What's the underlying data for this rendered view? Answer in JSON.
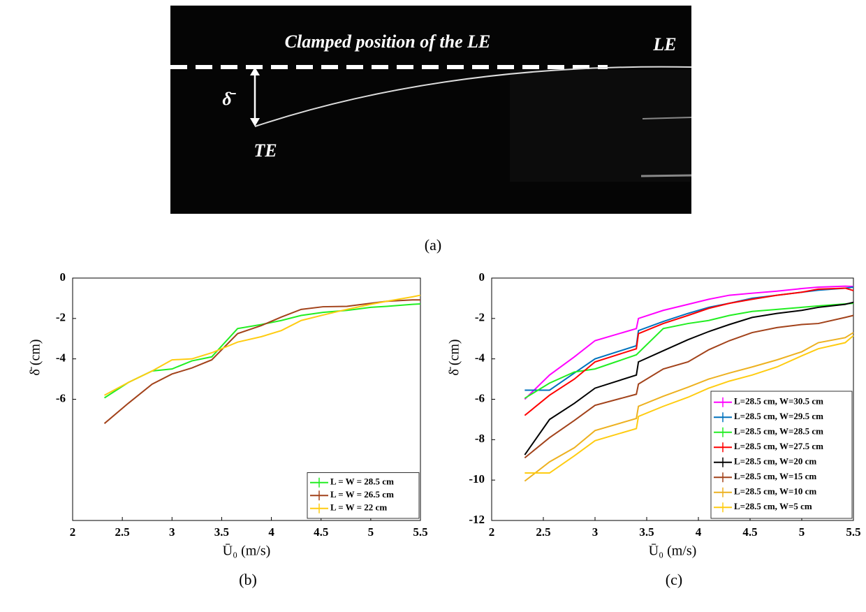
{
  "figure": {
    "image_labels": {
      "clamped": "Clamped position of the LE",
      "le": "LE",
      "delta": "δ̄",
      "te": "TE"
    },
    "panel_labels": [
      "(a)",
      "(b)",
      "(c)"
    ]
  },
  "chart_data": [
    {
      "type": "line",
      "x_label": "Ū₀ (m/s)",
      "y_label": "δ̄ (cm)",
      "xlim": [
        2,
        5.5
      ],
      "xticks": [
        2,
        2.5,
        3,
        3.5,
        4,
        4.5,
        5,
        5.5
      ],
      "ylim": [
        -12,
        0
      ],
      "yticks": [
        0,
        -2,
        -4,
        -6
      ],
      "legend": "lower right",
      "series": [
        {
          "name": "L = W = 28.5 cm",
          "color": "#22ee22",
          "x": [
            2.32,
            2.56,
            2.8,
            3.0,
            3.2,
            3.4,
            3.66,
            3.9,
            4.1,
            4.3,
            4.52,
            4.76,
            5.0,
            5.16,
            5.42,
            5.5
          ],
          "values": [
            -5.93,
            -5.17,
            -4.6,
            -4.5,
            -4.1,
            -3.9,
            -2.5,
            -2.3,
            -2.1,
            -1.85,
            -1.7,
            -1.6,
            -1.45,
            -1.4,
            -1.3,
            -1.28
          ]
        },
        {
          "name": "L = W = 26.5 cm",
          "color": "#a2421a",
          "x": [
            2.32,
            2.56,
            2.8,
            3.0,
            3.2,
            3.4,
            3.66,
            3.9,
            4.1,
            4.3,
            4.52,
            4.76,
            5.0,
            5.16,
            5.42,
            5.5
          ],
          "values": [
            -7.2,
            -6.2,
            -5.25,
            -4.75,
            -4.45,
            -4.05,
            -2.75,
            -2.35,
            -1.93,
            -1.55,
            -1.42,
            -1.4,
            -1.25,
            -1.15,
            -1.08,
            -1.08
          ]
        },
        {
          "name": "L = W = 22 cm",
          "color": "#ffcc11",
          "x": [
            2.32,
            2.56,
            2.8,
            3.0,
            3.2,
            3.4,
            3.66,
            3.9,
            4.1,
            4.3,
            4.52,
            4.76,
            5.0,
            5.16,
            5.42,
            5.5
          ],
          "values": [
            -5.8,
            -5.17,
            -4.6,
            -4.05,
            -4.0,
            -3.7,
            -3.17,
            -2.9,
            -2.6,
            -2.1,
            -1.83,
            -1.55,
            -1.3,
            -1.15,
            -0.93,
            -0.85
          ]
        }
      ]
    },
    {
      "type": "line",
      "x_label": "Ū₀ (m/s)",
      "y_label": "δ̄ (cm)",
      "xlim": [
        2,
        5.5
      ],
      "xticks": [
        2,
        2.5,
        3,
        3.5,
        4,
        4.5,
        5,
        5.5
      ],
      "ylim": [
        -12,
        0
      ],
      "yticks": [
        0,
        -2,
        -4,
        -6,
        -8,
        -10,
        -12
      ],
      "legend": "lower right",
      "series": [
        {
          "name": "L=28.5 cm, W=30.5 cm",
          "color": "#ff00ff",
          "x": [
            2.32,
            2.56,
            2.8,
            3.0,
            3.4,
            3.42,
            3.66,
            3.9,
            4.1,
            4.3,
            4.52,
            4.76,
            5.0,
            5.16,
            5.42,
            5.5
          ],
          "values": [
            -6.0,
            -4.8,
            -3.9,
            -3.1,
            -2.5,
            -2.0,
            -1.6,
            -1.3,
            -1.05,
            -0.85,
            -0.75,
            -0.65,
            -0.52,
            -0.45,
            -0.4,
            -0.42
          ]
        },
        {
          "name": "L=28.5 cm, W=29.5 cm",
          "color": "#0072bd",
          "x": [
            2.32,
            2.56,
            2.8,
            3.0,
            3.4,
            3.42,
            3.66,
            3.9,
            4.1,
            4.3,
            4.52,
            4.76,
            5.0,
            5.16,
            5.42,
            5.5
          ],
          "values": [
            -5.55,
            -5.55,
            -4.7,
            -4.0,
            -3.35,
            -2.6,
            -2.15,
            -1.75,
            -1.45,
            -1.25,
            -1.0,
            -0.85,
            -0.7,
            -0.6,
            -0.5,
            -0.45
          ]
        },
        {
          "name": "L=28.5 cm, W=28.5 cm",
          "color": "#22ee22",
          "x": [
            2.32,
            2.56,
            2.8,
            3.0,
            3.2,
            3.4,
            3.66,
            3.9,
            4.1,
            4.3,
            4.52,
            4.76,
            5.0,
            5.16,
            5.42,
            5.5
          ],
          "values": [
            -5.95,
            -5.2,
            -4.65,
            -4.5,
            -4.15,
            -3.8,
            -2.5,
            -2.25,
            -2.1,
            -1.85,
            -1.65,
            -1.55,
            -1.45,
            -1.38,
            -1.28,
            -1.25
          ]
        },
        {
          "name": "L=28.5 cm, W=27.5 cm",
          "color": "#ff0000",
          "x": [
            2.32,
            2.56,
            2.8,
            3.0,
            3.4,
            3.42,
            3.66,
            3.9,
            4.1,
            4.3,
            4.52,
            4.76,
            5.0,
            5.16,
            5.42,
            5.5
          ],
          "values": [
            -6.8,
            -5.8,
            -5.0,
            -4.15,
            -3.5,
            -2.75,
            -2.25,
            -1.85,
            -1.5,
            -1.25,
            -1.05,
            -0.85,
            -0.7,
            -0.55,
            -0.5,
            -0.62
          ]
        },
        {
          "name": "L=28.5 cm, W=20 cm",
          "color": "#000000",
          "x": [
            2.32,
            2.56,
            2.8,
            3.0,
            3.4,
            3.42,
            3.66,
            3.9,
            4.1,
            4.3,
            4.52,
            4.76,
            5.0,
            5.16,
            5.42,
            5.5
          ],
          "values": [
            -8.75,
            -7.0,
            -6.2,
            -5.45,
            -4.8,
            -4.15,
            -3.6,
            -3.05,
            -2.65,
            -2.3,
            -1.95,
            -1.75,
            -1.6,
            -1.45,
            -1.3,
            -1.2
          ]
        },
        {
          "name": "L=28.5 cm, W=15 cm",
          "color": "#a2421a",
          "x": [
            2.32,
            2.56,
            2.8,
            3.0,
            3.4,
            3.42,
            3.66,
            3.9,
            4.1,
            4.3,
            4.52,
            4.76,
            5.0,
            5.16,
            5.42,
            5.5
          ],
          "values": [
            -8.9,
            -7.9,
            -7.05,
            -6.3,
            -5.75,
            -5.25,
            -4.5,
            -4.15,
            -3.55,
            -3.1,
            -2.7,
            -2.45,
            -2.3,
            -2.25,
            -1.95,
            -1.85
          ]
        },
        {
          "name": "L=28.5 cm, W=10 cm",
          "color": "#edb120",
          "x": [
            2.32,
            2.56,
            2.8,
            3.0,
            3.4,
            3.42,
            3.66,
            3.9,
            4.1,
            4.3,
            4.52,
            4.76,
            5.0,
            5.16,
            5.42,
            5.5
          ],
          "values": [
            -10.05,
            -9.1,
            -8.4,
            -7.55,
            -6.95,
            -6.35,
            -5.85,
            -5.4,
            -5.0,
            -4.7,
            -4.4,
            -4.05,
            -3.65,
            -3.2,
            -2.95,
            -2.7
          ]
        },
        {
          "name": "L=28.5 cm, W=5 cm",
          "color": "#ffcc11",
          "x": [
            2.32,
            2.56,
            2.8,
            3.0,
            3.4,
            3.42,
            3.66,
            3.9,
            4.1,
            4.3,
            4.52,
            4.76,
            5.0,
            5.16,
            5.42,
            5.5
          ],
          "values": [
            -9.65,
            -9.65,
            -8.8,
            -8.05,
            -7.45,
            -6.85,
            -6.35,
            -5.9,
            -5.45,
            -5.1,
            -4.8,
            -4.4,
            -3.85,
            -3.5,
            -3.2,
            -2.85
          ]
        }
      ]
    }
  ]
}
